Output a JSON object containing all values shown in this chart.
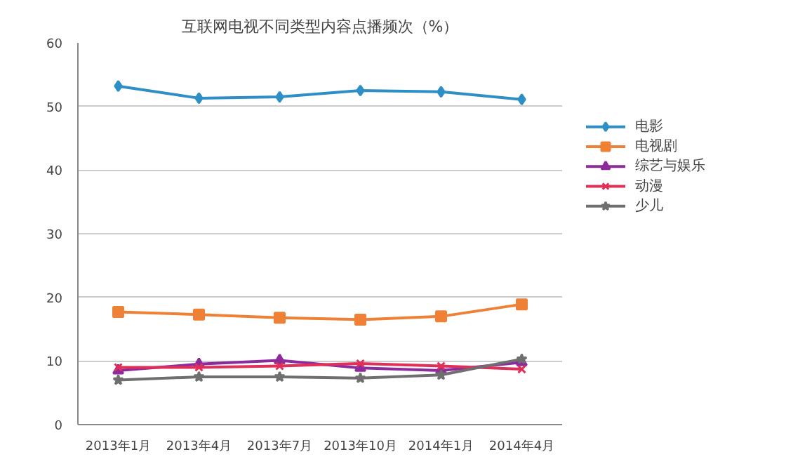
{
  "chart_data": {
    "type": "line",
    "title": "互联网电视不同类型内容点播频次（%）",
    "categories": [
      "2013年1月",
      "2013年4月",
      "2013年7月",
      "2013年10月",
      "2014年1月",
      "2014年4月"
    ],
    "series": [
      {
        "name": "电影",
        "color": "#2e8fc7",
        "marker": "diamond",
        "values": [
          53.2,
          51.3,
          51.5,
          52.5,
          52.3,
          51.1
        ]
      },
      {
        "name": "电视剧",
        "color": "#ee8135",
        "marker": "square",
        "values": [
          17.7,
          17.3,
          16.8,
          16.5,
          17.0,
          18.9
        ]
      },
      {
        "name": "综艺与娱乐",
        "color": "#8e2b9c",
        "marker": "triangle",
        "values": [
          8.5,
          9.5,
          10.1,
          8.9,
          8.5,
          9.8
        ]
      },
      {
        "name": "动漫",
        "color": "#e0305a",
        "marker": "cross",
        "values": [
          9.0,
          9.0,
          9.2,
          9.6,
          9.2,
          8.7
        ]
      },
      {
        "name": "少儿",
        "color": "#6f6f6f",
        "marker": "star",
        "values": [
          7.0,
          7.5,
          7.5,
          7.3,
          7.8,
          10.3
        ]
      }
    ],
    "ylim": [
      0,
      60
    ],
    "yticks": [
      0,
      10,
      20,
      30,
      40,
      50,
      60
    ],
    "grid": "y",
    "legend": "right"
  }
}
